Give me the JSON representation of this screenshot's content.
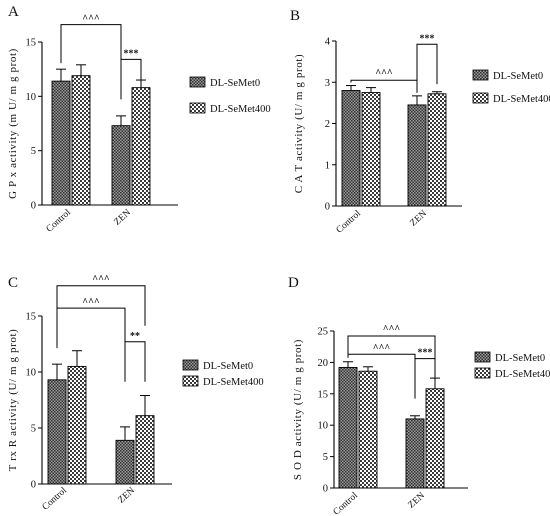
{
  "legend_labels": [
    "DL-SeMet0",
    "DL-SeMet400"
  ],
  "chart_data": [
    {
      "panel": "A",
      "type": "bar",
      "categories": [
        "Control",
        "ZEN"
      ],
      "ylabel": "G P x  activity  (m U/ m g  prot)",
      "ylim": [
        0,
        15
      ],
      "yticks": [
        "0",
        "5",
        "10",
        "15"
      ],
      "legend_placement": "right",
      "series": [
        {
          "name": "DL-SeMet0",
          "values": [
            11.4,
            7.3
          ],
          "errors": [
            1.1,
            0.9
          ]
        },
        {
          "name": "DL-SeMet400",
          "values": [
            11.9,
            10.8
          ],
          "errors": [
            1.0,
            0.7
          ]
        }
      ],
      "annotations": [
        {
          "text": "^^^",
          "from": [
            0,
            0
          ],
          "to": [
            1,
            0
          ]
        },
        {
          "text": "***",
          "from": [
            1,
            0
          ],
          "to": [
            1,
            1
          ]
        }
      ]
    },
    {
      "panel": "B",
      "type": "bar",
      "categories": [
        "Control",
        "ZEN"
      ],
      "ylabel": "C A T  activity  (U/ m g  prot)",
      "ylim": [
        0,
        4
      ],
      "yticks": [
        "0",
        "1",
        "2",
        "3",
        "4"
      ],
      "legend_placement": "right",
      "series": [
        {
          "name": "DL-SeMet0",
          "values": [
            2.8,
            2.45
          ],
          "errors": [
            0.12,
            0.22
          ]
        },
        {
          "name": "DL-SeMet400",
          "values": [
            2.75,
            2.72
          ],
          "errors": [
            0.12,
            0.05
          ]
        }
      ],
      "annotations": [
        {
          "text": "^^^",
          "from": [
            0,
            0
          ],
          "to": [
            1,
            0
          ]
        },
        {
          "text": "***",
          "from": [
            1,
            0
          ],
          "to": [
            1,
            1
          ]
        }
      ]
    },
    {
      "panel": "C",
      "type": "bar",
      "categories": [
        "Control",
        "ZEN"
      ],
      "ylabel": "T rx R  activity  (U/ m g  prot)",
      "ylim": [
        0,
        15
      ],
      "yticks": [
        "0",
        "5",
        "10",
        "15"
      ],
      "legend_placement": "right",
      "series": [
        {
          "name": "DL-SeMet0",
          "values": [
            9.3,
            3.9
          ],
          "errors": [
            1.4,
            1.2
          ]
        },
        {
          "name": "DL-SeMet400",
          "values": [
            10.5,
            6.1
          ],
          "errors": [
            1.4,
            1.8
          ]
        }
      ],
      "annotations": [
        {
          "text": "^^^",
          "from": [
            0,
            0
          ],
          "to": [
            1,
            0
          ]
        },
        {
          "text": "^^^",
          "from": [
            0,
            0
          ],
          "to": [
            1,
            1
          ]
        },
        {
          "text": "**",
          "from": [
            1,
            0
          ],
          "to": [
            1,
            1
          ]
        }
      ]
    },
    {
      "panel": "D",
      "type": "bar",
      "categories": [
        "Control",
        "ZEN"
      ],
      "ylabel": "S O D  activity  (U/ m g  prot)",
      "ylim": [
        0,
        25
      ],
      "yticks": [
        "0",
        "5",
        "10",
        "15",
        "20",
        "25"
      ],
      "legend_placement": "right",
      "series": [
        {
          "name": "DL-SeMet0",
          "values": [
            19.2,
            11.0
          ],
          "errors": [
            0.9,
            0.5
          ]
        },
        {
          "name": "DL-SeMet400",
          "values": [
            18.6,
            15.8
          ],
          "errors": [
            0.7,
            1.7
          ]
        }
      ],
      "annotations": [
        {
          "text": "^^^",
          "from": [
            0,
            0
          ],
          "to": [
            1,
            0
          ]
        },
        {
          "text": "^^^",
          "from": [
            0,
            0
          ],
          "to": [
            1,
            1
          ]
        },
        {
          "text": "***",
          "from": [
            1,
            0
          ],
          "to": [
            1,
            1
          ]
        }
      ]
    }
  ]
}
